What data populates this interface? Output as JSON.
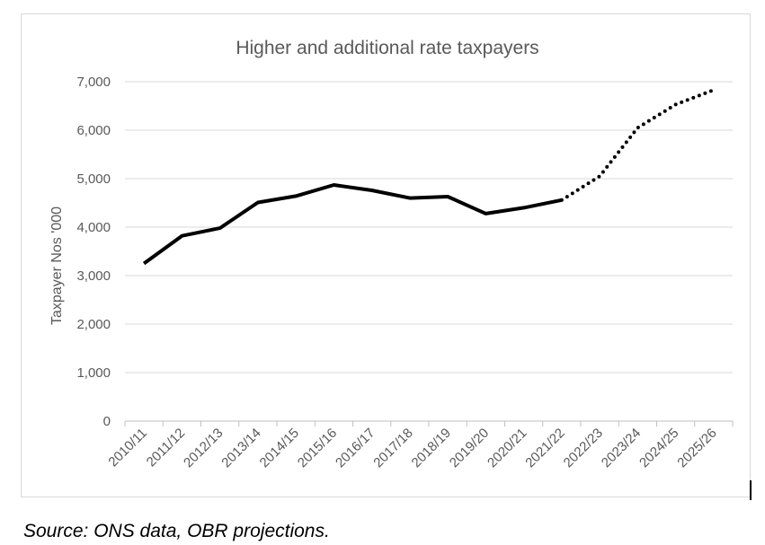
{
  "chart_data": {
    "type": "line",
    "title": "Higher and additional rate taxpayers",
    "xlabel": "",
    "ylabel": "Taxpayer Nos '000",
    "categories": [
      "2010/11",
      "2011/12",
      "2012/13",
      "2013/14",
      "2014/15",
      "2015/16",
      "2016/17",
      "2017/18",
      "2018/19",
      "2019/20",
      "2020/21",
      "2021/22",
      "2022/23",
      "2023/24",
      "2024/25",
      "2025/26"
    ],
    "ylim": [
      0,
      7000
    ],
    "yticks": [
      0,
      1000,
      2000,
      3000,
      4000,
      5000,
      6000,
      7000
    ],
    "ytick_labels": [
      "0",
      "1,000",
      "2,000",
      "3,000",
      "4,000",
      "5,000",
      "6,000",
      "7,000"
    ],
    "grid": true,
    "legend": "none",
    "series": [
      {
        "style": "solid",
        "color": "#000000",
        "x": [
          "2010/11",
          "2011/12",
          "2012/13",
          "2013/14",
          "2014/15",
          "2015/16",
          "2016/17",
          "2017/18",
          "2018/19",
          "2019/20",
          "2020/21",
          "2021/22"
        ],
        "values": [
          3250,
          3820,
          3980,
          4510,
          4640,
          4870,
          4760,
          4600,
          4630,
          4280,
          4400,
          4560
        ]
      },
      {
        "style": "dotted",
        "color": "#000000",
        "x": [
          "2021/22",
          "2022/23",
          "2023/24",
          "2024/25",
          "2025/26"
        ],
        "values": [
          4560,
          5050,
          6050,
          6530,
          6830
        ]
      }
    ]
  },
  "source_note": "Source: ONS data, OBR projections."
}
